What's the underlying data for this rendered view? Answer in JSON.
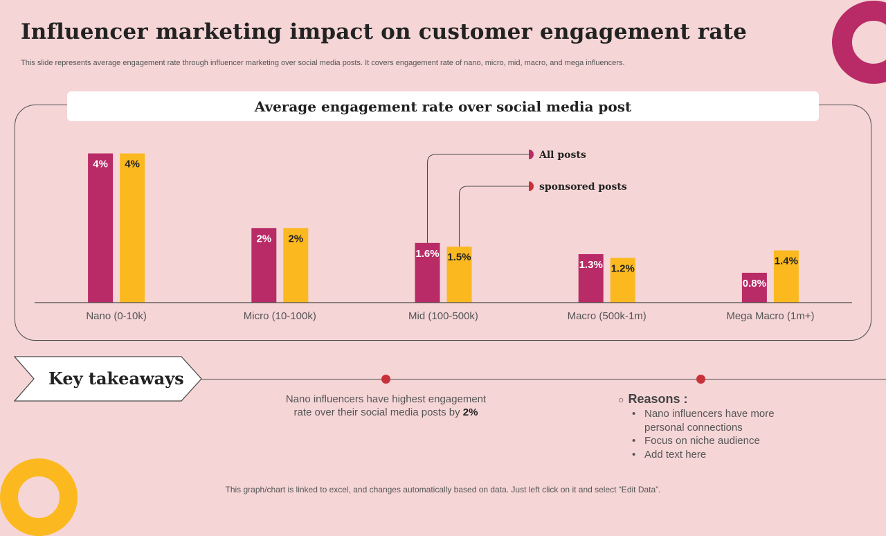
{
  "slide": {
    "title": "Influencer marketing impact on customer engagement rate",
    "subtitle": "This slide represents average engagement rate through influencer marketing over social media posts. It covers engagement rate of nano, micro, mid, macro, and mega influencers.",
    "footnote": "This graph/chart is linked to excel, and changes automatically based on data. Just left click on it and select “Edit Data”."
  },
  "chart_data": {
    "type": "bar",
    "title": "Average engagement rate over social media post",
    "categories": [
      "Nano (0-10k)",
      "Micro (10-100k)",
      "Mid (100-500k)",
      "Macro (500k-1m)",
      "Mega Macro (1m+)"
    ],
    "series": [
      {
        "name": "All posts",
        "color": "#b82b66",
        "values": [
          4,
          2,
          1.6,
          1.3,
          0.8
        ],
        "labels": [
          "4%",
          "2%",
          "1.6%",
          "1.3%",
          "0.8%"
        ]
      },
      {
        "name": "sponsored posts",
        "color": "#fbb91f",
        "values": [
          4,
          2,
          1.5,
          1.2,
          1.4
        ],
        "labels": [
          "4%",
          "2%",
          "1.5%",
          "1.2%",
          "1.4%"
        ]
      }
    ],
    "ylim": [
      0,
      4.4
    ],
    "grid": false,
    "xlabel": "",
    "ylabel": "",
    "legend_position": "callout"
  },
  "takeaways": {
    "label": "Key takeaways",
    "text_main": "Nano influencers have highest engagement rate over their social media posts by",
    "text_highlight": "2%",
    "reasons_title": "Reasons :",
    "reasons": [
      "Nano influencers have more personal connections",
      "Focus on niche audience",
      "Add text here"
    ]
  },
  "colors": {
    "background": "#f5d5d6",
    "accent_magenta": "#b82b66",
    "accent_yellow": "#fbb91f",
    "dot_red": "#c8303a"
  }
}
